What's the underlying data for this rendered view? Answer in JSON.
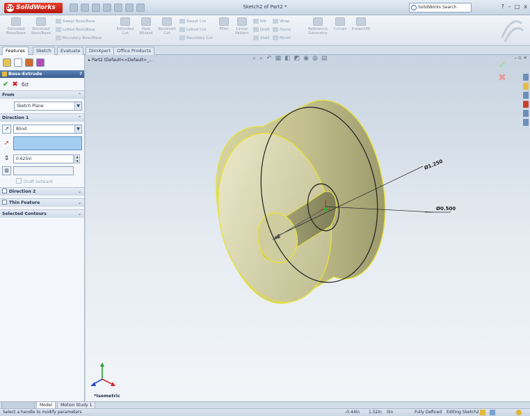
{
  "app": {
    "logo": "SolidWorks",
    "title": "Sketch2 of Part2 *",
    "search_placeholder": "SolidWorks Search",
    "window_controls": [
      "?",
      "-",
      "□",
      "x"
    ]
  },
  "toolbar": {
    "buttons": [
      {
        "label": "Extruded Boss/Base",
        "icon": "extrude-icon"
      },
      {
        "label": "Revolved Boss/Base",
        "icon": "revolve-icon"
      },
      {
        "label": "Extruded Cut",
        "icon": "extruded-cut-icon"
      },
      {
        "label": "Hole Wizard",
        "icon": "hole-wizard-icon"
      },
      {
        "label": "Revolved Cut",
        "icon": "revolved-cut-icon"
      },
      {
        "label": "Fillet",
        "icon": "fillet-icon"
      },
      {
        "label": "Linear Pattern",
        "icon": "linear-pattern-icon"
      },
      {
        "label": "Reference Geometry",
        "icon": "reference-geometry-icon"
      },
      {
        "label": "Curves",
        "icon": "curves-icon"
      },
      {
        "label": "Instant3D",
        "icon": "instant3d-icon"
      }
    ],
    "rows": [
      "Swept Boss/Base",
      "Lofted Boss/Base",
      "Boundary Boss/Base",
      "Swept Cut",
      "Lofted Cut",
      "Boundary Cut",
      "Rib",
      "Wrap",
      "Draft",
      "Dome",
      "Shell",
      "Mirror"
    ]
  },
  "tabs": [
    "Features",
    "Sketch",
    "Evaluate",
    "DimXpert",
    "Office Products"
  ],
  "property_manager": {
    "title": "Boss-Extrude",
    "help": "?",
    "from": {
      "header": "From",
      "value": "Sketch Plane"
    },
    "direction1": {
      "header": "Direction 1",
      "end_condition": "Blind",
      "depth": "0.625in",
      "draft_outward": "Draft outward"
    },
    "direction2": {
      "header": "Direction 2"
    },
    "thin_feature": {
      "header": "Thin Feature"
    },
    "selected_contours": {
      "header": "Selected Contours"
    }
  },
  "viewport": {
    "tree_label": "Part2 (Default<<Default>_...",
    "dim_outer": "Ø1.250",
    "dim_inner": "Ø0.500",
    "view_label": "*Isometric"
  },
  "bottom_tabs": [
    "Model",
    "Motion Study 1"
  ],
  "status": {
    "message": "Select a handle to modify parameters",
    "x": "-0.44in",
    "y": "1.52in",
    "z": "0in",
    "state": "Fully Defined",
    "editing": "Editing Sketch2"
  }
}
